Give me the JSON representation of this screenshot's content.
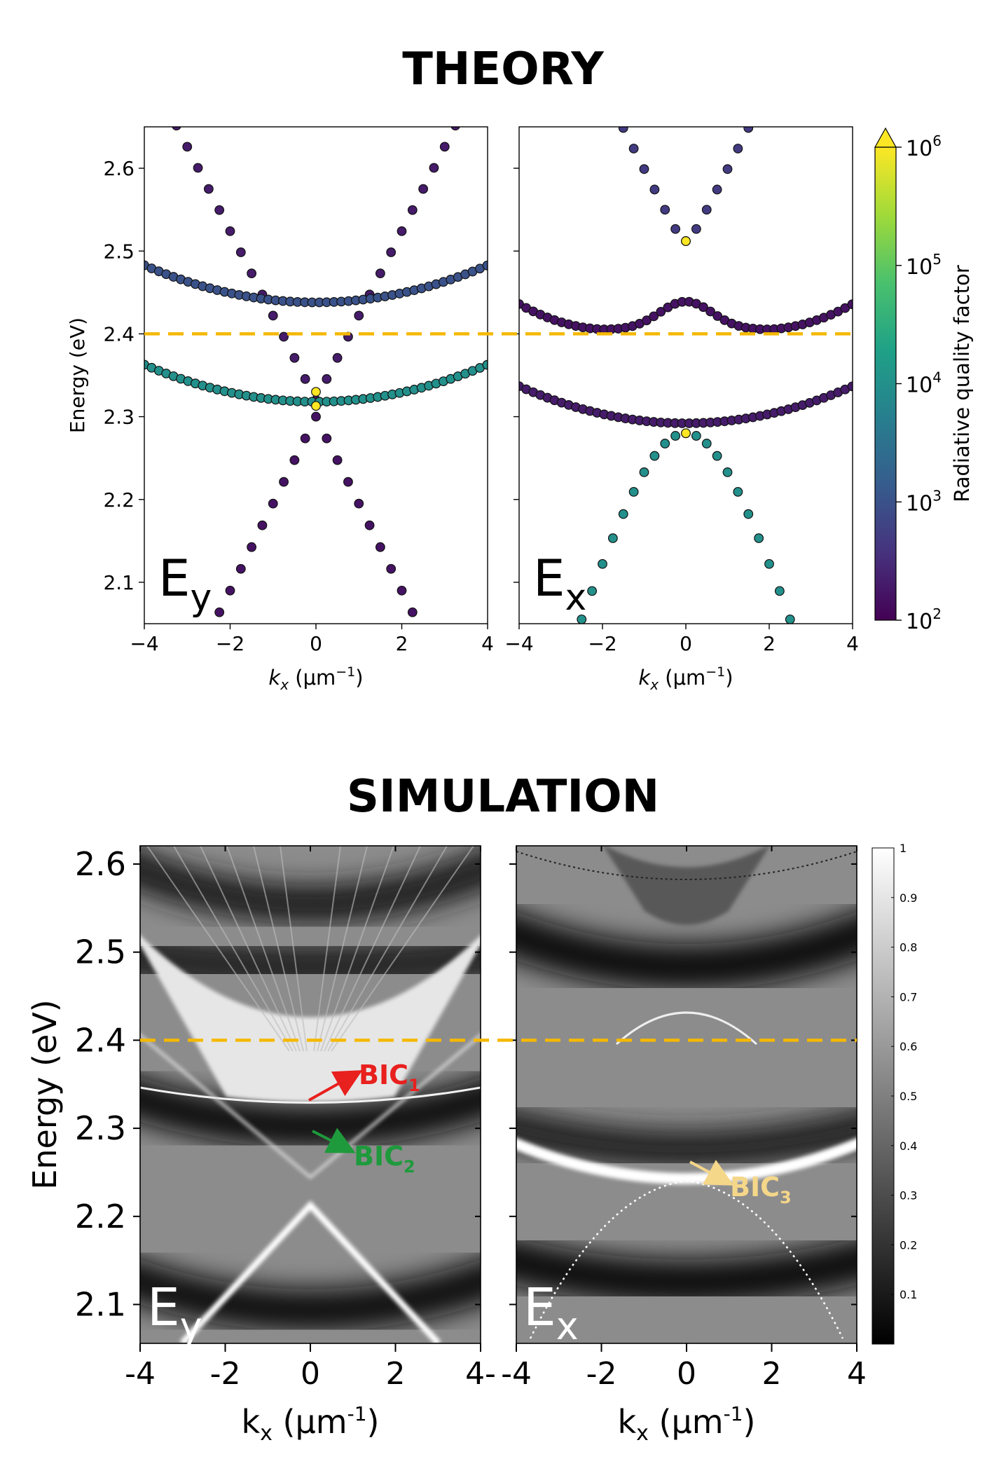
{
  "headings": {
    "theory": "THEORY",
    "simulation": "SIMULATION"
  },
  "colors": {
    "reference_line": "#f5b800",
    "bic1": "#e8201e",
    "bic2": "#1e9a3c",
    "bic3": "#f5d78a",
    "viridis": [
      "#440154",
      "#46327e",
      "#365c8d",
      "#277f8e",
      "#1fa187",
      "#4ac16d",
      "#a0da39",
      "#fde725"
    ]
  },
  "chart_data": [
    {
      "id": "theory_ey",
      "type": "scatter",
      "panel_label": "E",
      "panel_label_sub": "y",
      "ylabel": "Energy (eV)",
      "xlabel": "k",
      "xlabel_sub": "x",
      "xlabel_units": "(μm",
      "xlim": [
        -4,
        4
      ],
      "ylim": [
        2.05,
        2.65
      ],
      "xticks": [
        "−4",
        "−2",
        "0",
        "2",
        "4"
      ],
      "yticks": [
        "2.1",
        "2.2",
        "2.3",
        "2.4",
        "2.5",
        "2.6"
      ],
      "reference_line_energy": 2.4,
      "series": [
        {
          "name": "upper light line",
          "kind": "V",
          "e0": 2.32,
          "slope": 0.102,
          "log10Q": 2.3
        },
        {
          "name": "lower light line",
          "kind": "Λ",
          "e0": 2.3,
          "slope": 0.105,
          "log10Q": 2.2
        },
        {
          "name": "upper flat band",
          "kind": "parabola",
          "e0": 2.438,
          "curv": 0.0028,
          "log10Q": 3.0
        },
        {
          "name": "lower flat band",
          "kind": "parabola",
          "e0": 2.318,
          "curv": 0.0028,
          "log10Q": 4.0
        }
      ],
      "bic_points": [
        {
          "k": 0,
          "energy": 2.33
        },
        {
          "k": 0,
          "energy": 2.313
        }
      ]
    },
    {
      "id": "theory_ex",
      "type": "scatter",
      "panel_label": "E",
      "panel_label_sub": "x",
      "xlabel": "k",
      "xlabel_sub": "x",
      "xlabel_units": "(μm",
      "xlim": [
        -4,
        4
      ],
      "ylim": [
        2.05,
        2.65
      ],
      "xticks": [
        "−4",
        "−2",
        "0",
        "2",
        "4"
      ],
      "reference_line_energy": 2.4,
      "series": [
        {
          "name": "top band",
          "kind": "hyperbola",
          "e0": 2.512,
          "a": 0.014,
          "slope": 0.1,
          "log10Q": 2.7
        },
        {
          "name": "second band",
          "kind": "bump",
          "log10Q": 2.2
        },
        {
          "name": "third band",
          "kind": "parabola",
          "e0": 2.292,
          "curv": 0.0028,
          "log10Q": 2.3
        },
        {
          "name": "bottom band",
          "kind": "inverted",
          "e0": 2.28,
          "log10Q": 4.0
        }
      ],
      "bic_points": [
        {
          "k": 0,
          "energy": 2.512
        },
        {
          "k": 0,
          "energy": 2.28
        }
      ]
    },
    {
      "id": "colorbar_q",
      "type": "colorbar",
      "label": "Radiative quality factor",
      "scale": "log",
      "range": [
        100,
        1000000
      ],
      "tick_base": "10",
      "tick_exponents": [
        "2",
        "3",
        "4",
        "5",
        "6"
      ]
    },
    {
      "id": "simulation_ey",
      "type": "heatmap",
      "panel_label": "E",
      "panel_label_sub": "y",
      "ylabel": "Energy (eV)",
      "xlabel": "k",
      "xlabel_sub": "x",
      "xlabel_units": "(μm",
      "xlim": [
        -4,
        4
      ],
      "ylim": [
        2.06,
        2.62
      ],
      "xticks": [
        "-4",
        "-2",
        "0",
        "2",
        "4-"
      ],
      "yticks": [
        "2.1",
        "2.2",
        "2.3",
        "2.4",
        "2.5",
        "2.6"
      ],
      "reference_line_energy": 2.4,
      "annotations": [
        {
          "text": "BIC",
          "sub": "1",
          "k": 0,
          "energy": 2.333
        },
        {
          "text": "BIC",
          "sub": "2",
          "k": 0,
          "energy": 2.302
        }
      ]
    },
    {
      "id": "simulation_ex",
      "type": "heatmap",
      "panel_label": "E",
      "panel_label_sub": "x",
      "xlabel": "k",
      "xlabel_sub": "x",
      "xlabel_units": "(μm",
      "xlim": [
        -4,
        4
      ],
      "ylim": [
        2.06,
        2.62
      ],
      "xticks": [
        "-4",
        "-2",
        "0",
        "2",
        "4"
      ],
      "reference_line_energy": 2.4,
      "annotations": [
        {
          "text": "BIC",
          "sub": "3",
          "k": 0,
          "energy": 2.268
        }
      ]
    },
    {
      "id": "colorbar_sim",
      "type": "colorbar",
      "scale": "linear",
      "range": [
        0,
        1
      ],
      "ticks": [
        "1",
        "0.9",
        "0.8",
        "0.7",
        "0.6",
        "0.5",
        "0.4",
        "0.3",
        "0.2",
        "0.1"
      ]
    }
  ]
}
